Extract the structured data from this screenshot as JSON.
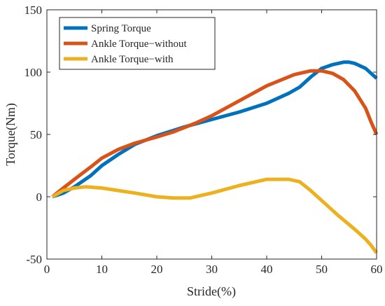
{
  "chart_data": {
    "type": "line",
    "xlabel": "Stride(%)",
    "ylabel": "Torque(Nm)",
    "xlim": [
      0,
      60
    ],
    "ylim": [
      -50,
      150
    ],
    "xticks": [
      0,
      10,
      20,
      30,
      40,
      50,
      60
    ],
    "yticks": [
      -50,
      0,
      50,
      100,
      150
    ],
    "grid": false,
    "legend_position": "top-left",
    "series": [
      {
        "name": "Spring Torque",
        "color": "#0072BD",
        "x": [
          1,
          3,
          5,
          8,
          10,
          13,
          16,
          20,
          25,
          30,
          35,
          40,
          44,
          46,
          48,
          50,
          52,
          54,
          55,
          56,
          58,
          60
        ],
        "y": [
          0,
          3,
          8,
          17,
          25,
          34,
          42,
          49,
          56,
          62,
          68,
          75,
          83,
          88,
          96,
          103,
          106,
          108,
          108,
          107,
          103,
          95
        ]
      },
      {
        "name": "Ankle Torque−without",
        "color": "#D95319",
        "x": [
          1,
          3,
          5,
          8,
          10,
          13,
          16,
          20,
          23,
          27,
          30,
          35,
          40,
          45,
          48,
          50,
          52,
          54,
          56,
          58,
          59,
          60
        ],
        "y": [
          0,
          7,
          14,
          24,
          31,
          38,
          43,
          48,
          52,
          59,
          65,
          77,
          89,
          98,
          101,
          101,
          99,
          94,
          85,
          71,
          60,
          50
        ]
      },
      {
        "name": "Ankle Torque−with",
        "color": "#EDB120",
        "x": [
          1,
          3,
          5,
          7,
          10,
          13,
          16,
          20,
          23,
          26,
          30,
          35,
          40,
          42,
          44,
          46,
          48,
          50,
          53,
          56,
          58,
          59,
          60
        ],
        "y": [
          0,
          5,
          7,
          8,
          7,
          5,
          3,
          0,
          -1,
          -1,
          3,
          9,
          14,
          14,
          14,
          12,
          5,
          -3,
          -15,
          -26,
          -34,
          -39,
          -45
        ]
      }
    ]
  }
}
